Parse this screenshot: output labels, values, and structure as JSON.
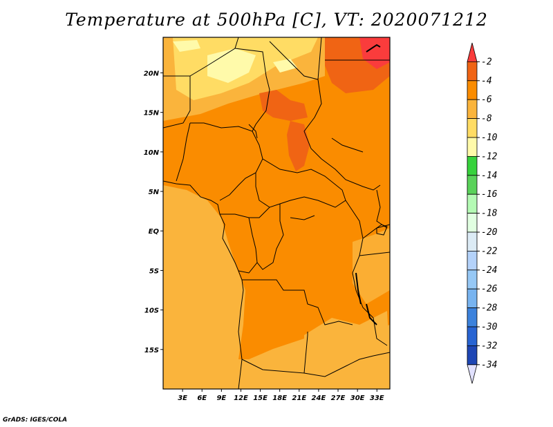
{
  "title": "Temperature at 500hPa [C], VT: 2020071212",
  "footer": "GrADS: IGES/COLA",
  "map": {
    "lon_range": [
      0,
      35
    ],
    "lat_range": [
      -20,
      24.5
    ],
    "lat_ticks": [
      {
        "value": 20,
        "label": "20N"
      },
      {
        "value": 15,
        "label": "15N"
      },
      {
        "value": 10,
        "label": "10N"
      },
      {
        "value": 5,
        "label": "5N"
      },
      {
        "value": 0,
        "label": "EQ"
      },
      {
        "value": -5,
        "label": "5S"
      },
      {
        "value": -10,
        "label": "10S"
      },
      {
        "value": -15,
        "label": "15S"
      }
    ],
    "lon_ticks": [
      {
        "value": 3,
        "label": "3E"
      },
      {
        "value": 6,
        "label": "6E"
      },
      {
        "value": 9,
        "label": "9E"
      },
      {
        "value": 12,
        "label": "12E"
      },
      {
        "value": 15,
        "label": "15E"
      },
      {
        "value": 18,
        "label": "18E"
      },
      {
        "value": 21,
        "label": "21E"
      },
      {
        "value": 24,
        "label": "24E"
      },
      {
        "value": 27,
        "label": "27E"
      },
      {
        "value": 30,
        "label": "30E"
      },
      {
        "value": 33,
        "label": "33E"
      }
    ]
  },
  "colorbar": {
    "levels": [
      "-2",
      "-4",
      "-6",
      "-8",
      "-10",
      "-12",
      "-14",
      "-16",
      "-18",
      "-20",
      "-22",
      "-24",
      "-26",
      "-28",
      "-30",
      "-32",
      "-34"
    ],
    "colors": [
      "#fa3c3c",
      "#f06414",
      "#fa8c00",
      "#ffa000",
      "#fab43c",
      "#ffdc64",
      "#fffaaa",
      "#37d23c",
      "#5ad25a",
      "#96f08c",
      "#b4fab4",
      "#e1ffe1",
      "#dcebf5",
      "#b4d2fa",
      "#96c8f5",
      "#78b4f0",
      "#5096e6",
      "#3c82dc",
      "#2864d2",
      "#1e46b4",
      "#0a0a78"
    ]
  }
}
